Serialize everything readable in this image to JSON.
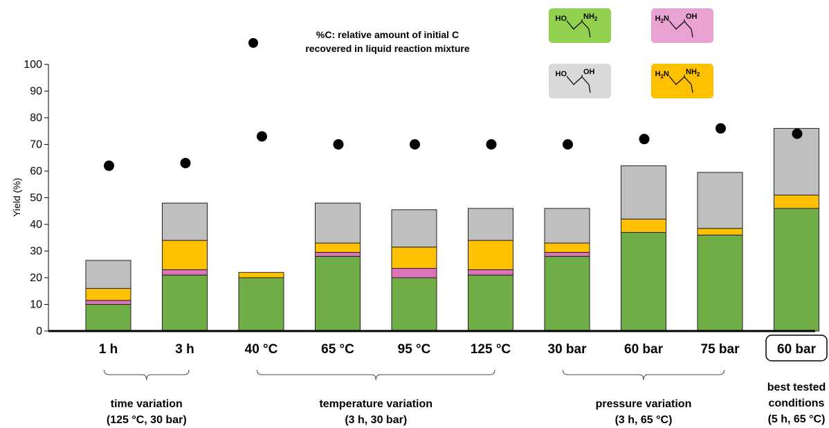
{
  "chart_data": {
    "type": "bar",
    "stacked": true,
    "ylabel": "Yield (%)",
    "ylim": [
      0,
      100
    ],
    "yticks": [
      0,
      10,
      20,
      30,
      40,
      50,
      60,
      70,
      80,
      90,
      100
    ],
    "categories": [
      "1 h",
      "3 h",
      "40 °C",
      "65 °C",
      "95 °C",
      "125 °C",
      "30 bar",
      "60 bar",
      "75 bar",
      "60 bar"
    ],
    "series": [
      {
        "color": "#70ad47",
        "values": [
          10,
          21,
          20,
          28,
          20,
          21,
          28,
          37,
          36,
          46
        ]
      },
      {
        "color": "#dd73b8",
        "values": [
          1.5,
          2,
          0,
          1.5,
          3.5,
          2,
          1.5,
          0,
          0,
          0
        ]
      },
      {
        "color": "#ffc000",
        "values": [
          4.5,
          11,
          2,
          3.5,
          8,
          11,
          3.5,
          5,
          2.5,
          5
        ]
      },
      {
        "color": "#bfbfbf",
        "values": [
          10.5,
          14,
          0,
          15,
          14,
          12,
          13,
          20,
          21,
          25
        ]
      }
    ],
    "scatter": {
      "values": [
        62,
        63,
        73,
        70,
        70,
        70,
        70,
        72,
        76,
        74
      ]
    },
    "legend_note": [
      "%C: relative amount of  initial C",
      "recovered in liquid reaction mixture"
    ],
    "groups": [
      {
        "label": [
          "time variation",
          "(125 °C, 30 bar)"
        ],
        "start": 0,
        "end": 1
      },
      {
        "label": [
          "temperature variation",
          "(3 h, 30 bar)"
        ],
        "start": 2,
        "end": 5
      },
      {
        "label": [
          "pressure variation",
          "(3 h, 65 °C)"
        ],
        "start": 6,
        "end": 8
      },
      {
        "label": [
          "best tested",
          "conditions",
          "(5 h, 65 °C)"
        ],
        "start": 9,
        "end": 9
      }
    ],
    "highlighted_category": 9,
    "molecules": [
      {
        "left": "HO",
        "right": "NH2",
        "color": "#92d050"
      },
      {
        "left": "H2N",
        "right": "OH",
        "color": "#e9a3d2"
      },
      {
        "left": "HO",
        "right": "OH",
        "color": "#d9d9d9"
      },
      {
        "left": "H2N",
        "right": "NH2",
        "color": "#ffc000"
      }
    ]
  }
}
